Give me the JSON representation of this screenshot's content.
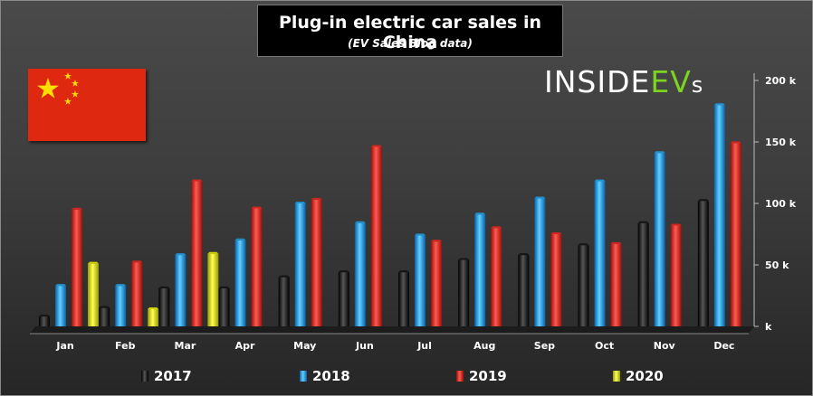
{
  "header": {
    "title": "Plug-in electric car sales in China",
    "subtitle": "(EV Sales Blog data)"
  },
  "logo": {
    "part1": "INSIDE",
    "part2": "EV",
    "part3": "s"
  },
  "colors": {
    "2017": "#111111",
    "2018": "#1e9be0",
    "2019": "#e3231c",
    "2020": "#e6e600",
    "flag_red": "#de2910",
    "flag_star": "#ffde00",
    "logo_green": "#7ed321"
  },
  "chart_data": {
    "type": "bar",
    "title": "Plug-in electric car sales in China",
    "subtitle": "(EV Sales Blog data)",
    "categories": [
      "Jan",
      "Feb",
      "Mar",
      "Apr",
      "May",
      "Jun",
      "Jul",
      "Aug",
      "Sep",
      "Oct",
      "Nov",
      "Dec"
    ],
    "series": [
      {
        "name": "2017",
        "values": [
          8000,
          15000,
          31000,
          31000,
          40000,
          44000,
          44000,
          54000,
          58000,
          66000,
          84000,
          102000
        ]
      },
      {
        "name": "2018",
        "values": [
          33000,
          33000,
          58000,
          70000,
          100000,
          84000,
          74000,
          91000,
          104000,
          118000,
          141000,
          180000
        ]
      },
      {
        "name": "2019",
        "values": [
          95000,
          52000,
          118000,
          96000,
          103000,
          146000,
          69000,
          80000,
          75000,
          67000,
          82000,
          149000
        ]
      },
      {
        "name": "2020",
        "values": [
          51000,
          14000,
          59000,
          null,
          null,
          null,
          null,
          null,
          null,
          null,
          null,
          null
        ]
      }
    ],
    "yticks": [
      "k",
      "50 k",
      "100 k",
      "150 k",
      "200 k"
    ],
    "ytick_values": [
      0,
      50000,
      100000,
      150000,
      200000
    ],
    "ylim": [
      0,
      200000
    ],
    "legend_position": "bottom"
  }
}
